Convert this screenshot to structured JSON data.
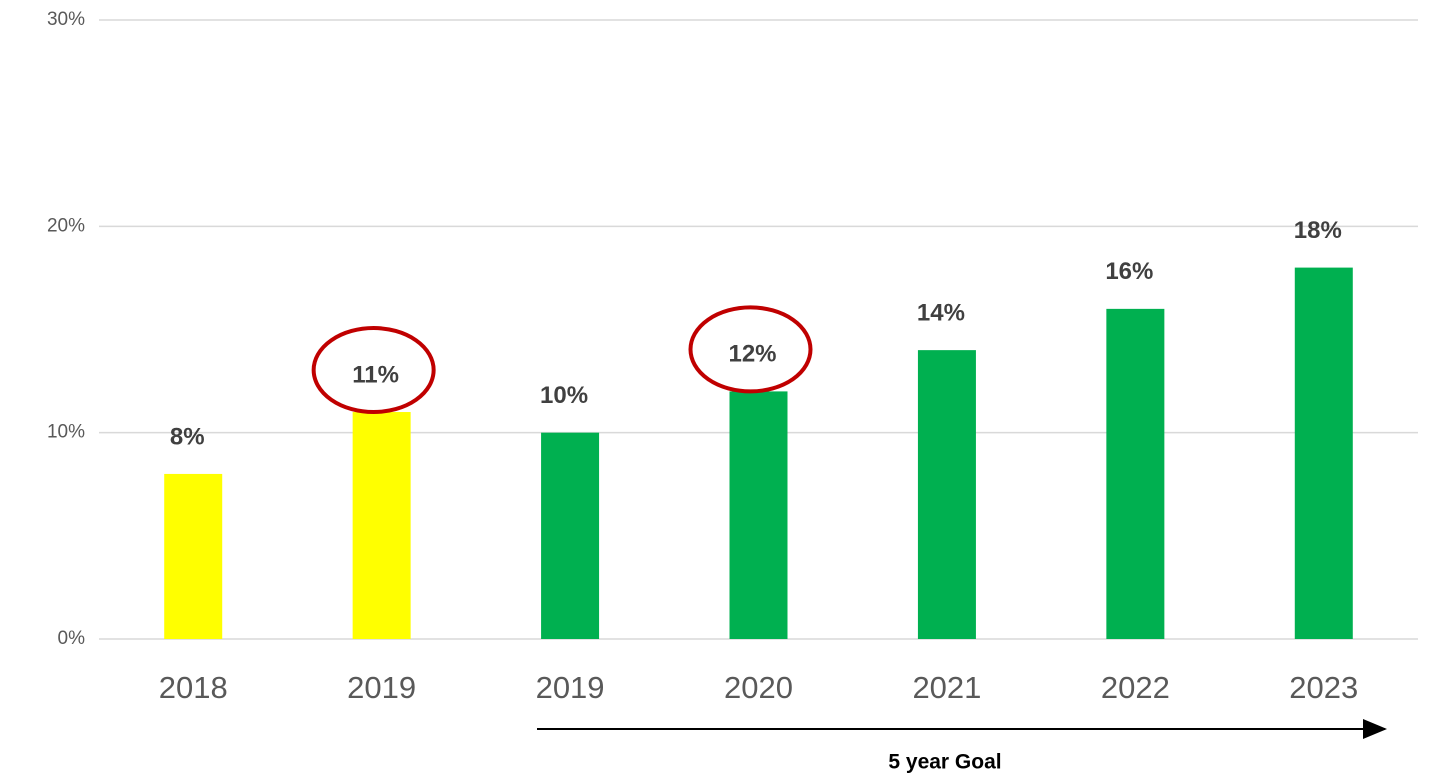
{
  "chart_data": {
    "type": "bar",
    "categories": [
      "2018",
      "2019",
      "2019",
      "2020",
      "2021",
      "2022",
      "2023"
    ],
    "values": [
      8,
      11,
      10,
      12,
      14,
      16,
      18
    ],
    "value_labels": [
      "8%",
      "11%",
      "10%",
      "12%",
      "14%",
      "16%",
      "18%"
    ],
    "colors": [
      "#ffff00",
      "#ffff00",
      "#00b050",
      "#00b050",
      "#00b050",
      "#00b050",
      "#00b050"
    ],
    "highlight": [
      1,
      3
    ],
    "ylim": [
      0,
      30
    ],
    "yticks": [
      {
        "value": 0,
        "label": "0%"
      },
      {
        "value": 10,
        "label": "10%"
      },
      {
        "value": 20,
        "label": "20%"
      },
      {
        "value": 30,
        "label": "30%"
      }
    ],
    "grid": true,
    "annotation": "5 year Goal"
  }
}
